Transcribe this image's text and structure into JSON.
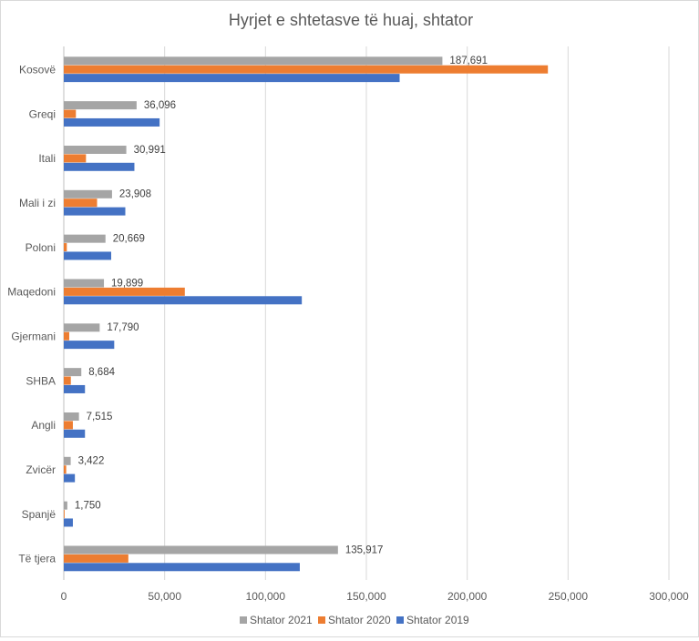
{
  "chart_data": {
    "type": "bar",
    "orientation": "horizontal",
    "title": "Hyrjet e shtetasve të huaj, shtator",
    "categories": [
      "Kosovë",
      "Greqi",
      "Itali",
      "Mali i zi",
      "Poloni",
      "Maqedoni",
      "Gjermani",
      "SHBA",
      "Angli",
      "Zvicër",
      "Spanjë",
      "Të tjera"
    ],
    "series": [
      {
        "name": "Shtator 2021",
        "color": "#a5a5a5",
        "values": [
          187691,
          36096,
          30991,
          23908,
          20669,
          19899,
          17790,
          8684,
          7515,
          3422,
          1750,
          135917
        ],
        "labels": [
          "187,691",
          "36,096",
          "30,991",
          "23,908",
          "20,669",
          "19,899",
          "17,790",
          "8,684",
          "7,515",
          "3,422",
          "1,750",
          "135,917"
        ]
      },
      {
        "name": "Shtator 2020",
        "color": "#ed7d31",
        "values": [
          240000,
          6000,
          11000,
          16500,
          1500,
          60000,
          2700,
          3500,
          4500,
          1200,
          400,
          32000
        ]
      },
      {
        "name": "Shtator 2019",
        "color": "#4472c4",
        "values": [
          166500,
          47500,
          35000,
          30500,
          23500,
          118000,
          25000,
          10500,
          10500,
          5500,
          4500,
          117000
        ]
      }
    ],
    "xlim": [
      0,
      300000
    ],
    "ticks": [
      0,
      50000,
      100000,
      150000,
      200000,
      250000,
      300000
    ],
    "tick_labels": [
      "0",
      "50,000",
      "100,000",
      "150,000",
      "200,000",
      "250,000",
      "300,000"
    ],
    "gridlines": true,
    "legend": "bottom"
  }
}
